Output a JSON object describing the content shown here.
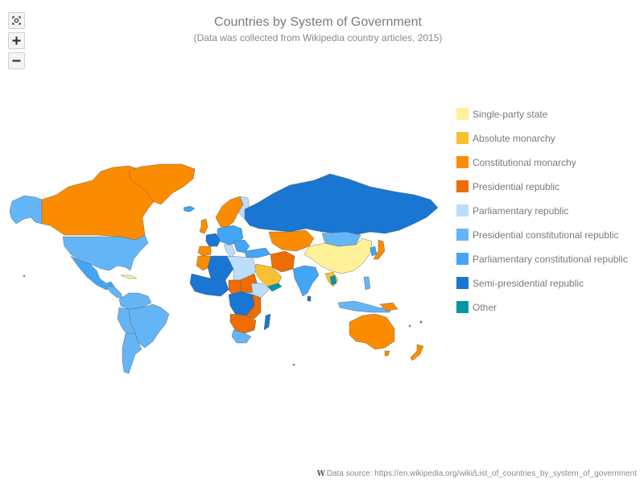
{
  "chart": {
    "title": "Countries by System of Government",
    "subtitle": "(Data was collected from Wikipedia country articles, 2015)"
  },
  "legend": {
    "items": [
      {
        "label": "Single-party state",
        "color": "#fff09a"
      },
      {
        "label": "Absolute monarchy",
        "color": "#f7c131"
      },
      {
        "label": "Constitutional monarchy",
        "color": "#fb8c00"
      },
      {
        "label": "Presidential republic",
        "color": "#ef6c00"
      },
      {
        "label": "Parliamentary republic",
        "color": "#bbdefb"
      },
      {
        "label": "Presidential constitutional republic",
        "color": "#64b5f6"
      },
      {
        "label": "Parliamentary constitutional republic",
        "color": "#42a5f5"
      },
      {
        "label": "Semi-presidential republic",
        "color": "#1976d2"
      },
      {
        "label": "Other",
        "color": "#0097a7"
      }
    ]
  },
  "controls": {
    "reset_icon": "fit-to-screen-icon",
    "zoom_in_icon": "plus-icon",
    "zoom_out_icon": "minus-icon"
  },
  "credits": {
    "icon": "wikipedia-icon",
    "text": "Data source: https://en.wikipedia.org/wiki/List_of_countries_by_system_of_government"
  }
}
